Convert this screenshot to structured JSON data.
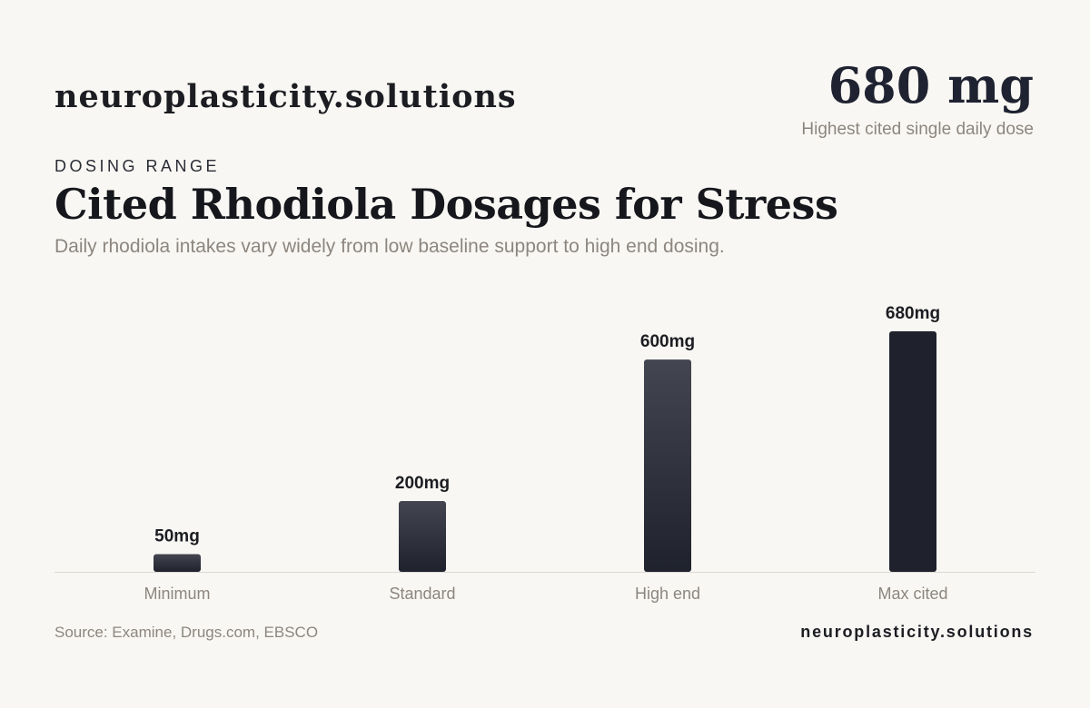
{
  "header": {
    "brand": "neuroplasticity.solutions",
    "stat_value": "680 mg",
    "stat_caption": "Highest cited single daily dose"
  },
  "eyebrow": "DOSING RANGE",
  "title": "Cited Rhodiola Dosages for Stress",
  "subtitle": "Daily rhodiola intakes vary widely from low baseline support to high end dosing.",
  "chart_data": {
    "type": "bar",
    "categories": [
      "Minimum",
      "Standard",
      "High end",
      "Max cited"
    ],
    "values": [
      50,
      200,
      600,
      680
    ],
    "data_labels": [
      "50mg",
      "200mg",
      "600mg",
      "680mg"
    ],
    "unit": "mg",
    "title": "",
    "xlabel": "",
    "ylabel": "",
    "ylim": [
      0,
      680
    ],
    "grid": false,
    "legend": "none",
    "colors": {
      "bar_light": "#434550",
      "bar_dark": "#1f222d",
      "axis": "#dcd9d3",
      "label": "#8d867f",
      "value": "#1c1d22"
    }
  },
  "footer": {
    "source": "Source: Examine, Drugs.com, EBSCO",
    "brand": "neuroplasticity.solutions"
  }
}
